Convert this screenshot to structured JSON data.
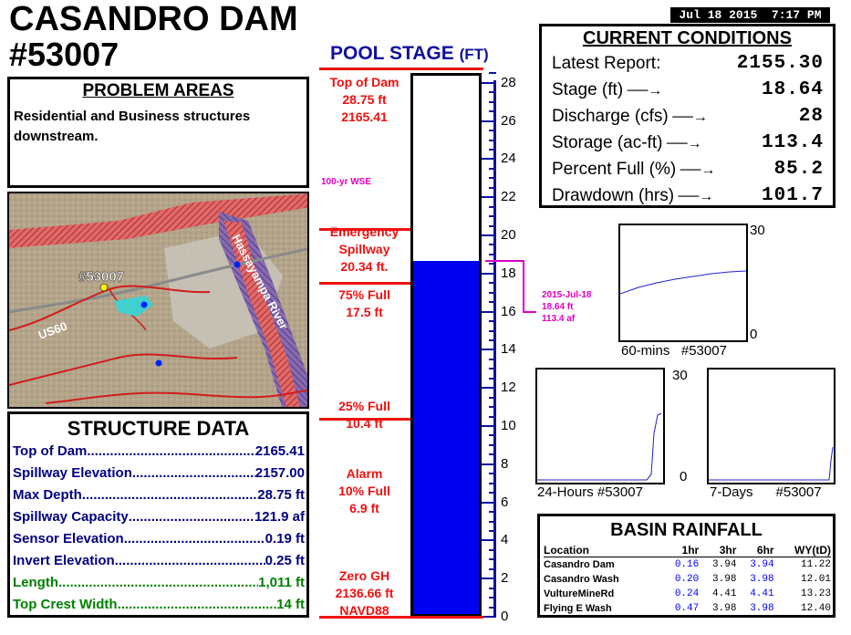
{
  "header": {
    "title": "CASANDRO DAM",
    "dam_id": "#53007",
    "datetime": "Jul 18 2015  7:17 PM"
  },
  "problem_areas": {
    "heading": "PROBLEM AREAS",
    "text": "Residential and Business structures downstream."
  },
  "map": {
    "labels": {
      "site": "#53007",
      "road": "US60",
      "river": "Hassayampa River"
    }
  },
  "structure_data": {
    "heading": "STRUCTURE DATA",
    "rows": [
      {
        "label": "Top of Dam",
        "value": "2165.41",
        "color": "#000080"
      },
      {
        "label": "Spillway Elevation",
        "value": "2157.00",
        "color": "#000080"
      },
      {
        "label": "Max Depth",
        "value": "28.75 ft",
        "color": "#000080"
      },
      {
        "label": "Spillway Capacity",
        "value": "121.9 af",
        "color": "#000080"
      },
      {
        "label": "Sensor Elevation",
        "value": "0.19 ft",
        "color": "#000080"
      },
      {
        "label": "Invert Elevation",
        "value": "0.25 ft",
        "color": "#000080"
      },
      {
        "label": "Length",
        "value": "1,011 ft",
        "color": "#008000"
      },
      {
        "label": "Top Crest Width",
        "value": "14 ft",
        "color": "#008000"
      }
    ]
  },
  "pool_stage": {
    "title_main": "POOL STAGE",
    "title_unit": "(FT)",
    "current_stage_ft": 18.64,
    "axis_max_ft": 28.75,
    "ticks": [
      "0",
      "2",
      "4",
      "6",
      "8",
      "10",
      "12",
      "14",
      "16",
      "18",
      "20",
      "22",
      "24",
      "26",
      "28"
    ],
    "markers": {
      "top_of_dam": {
        "lines": [
          "Top of Dam",
          "28.75 ft",
          "2165.41"
        ],
        "level_ft": 28.75
      },
      "wse_100yr": {
        "text": "100-yr WSE",
        "level_ft": 20.34
      },
      "emergency_spillway": {
        "lines": [
          "Emergency",
          "Spillway",
          "20.34 ft."
        ],
        "level_ft": 20.34
      },
      "full_75": {
        "lines": [
          "75% Full",
          "17.5 ft"
        ],
        "level_ft": 17.5
      },
      "full_25": {
        "lines": [
          "25% Full",
          "10.4 ft"
        ],
        "level_ft": 10.4
      },
      "alarm": {
        "lines": [
          "Alarm",
          "10% Full",
          "6.9 ft"
        ],
        "level_ft": 6.9
      },
      "zero_gh": {
        "lines": [
          "Zero GH",
          "2136.66 ft",
          "NAVD88"
        ],
        "level_ft": 0
      }
    },
    "annotation": [
      "2015-Jul-18",
      "18.64 ft",
      "113.4 af"
    ]
  },
  "current_conditions": {
    "heading": "CURRENT CONDITIONS",
    "rows": [
      {
        "label": "Latest Report:",
        "value": "2155.30",
        "arrow": false
      },
      {
        "label": "Stage (ft)",
        "value": "18.64",
        "arrow": true
      },
      {
        "label": "Discharge (cfs)",
        "value": "28",
        "arrow": true
      },
      {
        "label": "Storage (ac-ft)",
        "value": "113.4",
        "arrow": true
      },
      {
        "label": "Percent Full (%)",
        "value": "85.2",
        "arrow": true
      },
      {
        "label": "Drawdown (hrs)",
        "value": "101.7",
        "arrow": true
      }
    ]
  },
  "mini_charts": [
    {
      "label": "60-mins",
      "id": "#53007",
      "ymax": "30",
      "ymin": "0"
    },
    {
      "label": "24-Hours",
      "id": "#53007",
      "ymax": "30",
      "ymin": "0"
    },
    {
      "label": "7-Days",
      "id": "#53007"
    }
  ],
  "basin_rainfall": {
    "heading": "BASIN RAINFALL",
    "columns": [
      "Location",
      "1hr",
      "3hr",
      "6hr",
      "WY(tD)"
    ],
    "rows": [
      [
        "Casandro Dam",
        "0.16",
        "3.94",
        "3.94",
        "11.22"
      ],
      [
        "Casandro Wash",
        "0.20",
        "3.98",
        "3.98",
        "12.01"
      ],
      [
        "VultureMineRd",
        "0.24",
        "4.41",
        "4.41",
        "13.23"
      ],
      [
        "Flying E Wash",
        "0.47",
        "3.98",
        "3.98",
        "12.40"
      ]
    ]
  }
}
